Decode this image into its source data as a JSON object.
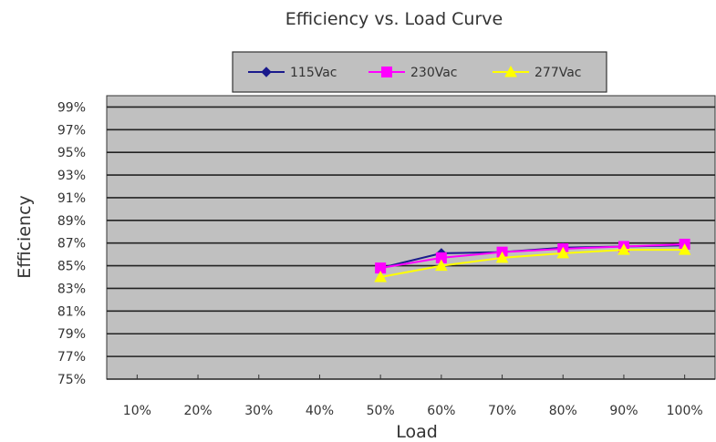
{
  "chart_data": {
    "type": "line",
    "title": "Efficiency vs. Load Curve",
    "xlabel": "Load",
    "ylabel": "Efficiency",
    "categories": [
      "10%",
      "20%",
      "30%",
      "40%",
      "50%",
      "60%",
      "70%",
      "80%",
      "90%",
      "100%"
    ],
    "yticks": [
      "75%",
      "77%",
      "79%",
      "81%",
      "83%",
      "85%",
      "87%",
      "89%",
      "91%",
      "93%",
      "95%",
      "97%",
      "99%"
    ],
    "ylim": [
      75,
      100
    ],
    "grid": true,
    "legend": "top",
    "series": [
      {
        "name": "115Vac",
        "color": "#1a1a8c",
        "marker": "diamond",
        "values": [
          null,
          null,
          null,
          null,
          84.8,
          86.1,
          86.2,
          86.6,
          86.7,
          86.8
        ]
      },
      {
        "name": "230Vac",
        "color": "#ff00ff",
        "marker": "square",
        "values": [
          null,
          null,
          null,
          null,
          84.8,
          85.7,
          86.2,
          86.5,
          86.7,
          86.9
        ]
      },
      {
        "name": "277Vac",
        "color": "#ffff00",
        "marker": "triangle",
        "values": [
          null,
          null,
          null,
          null,
          84.0,
          85.0,
          85.7,
          86.1,
          86.4,
          86.4
        ]
      }
    ]
  }
}
